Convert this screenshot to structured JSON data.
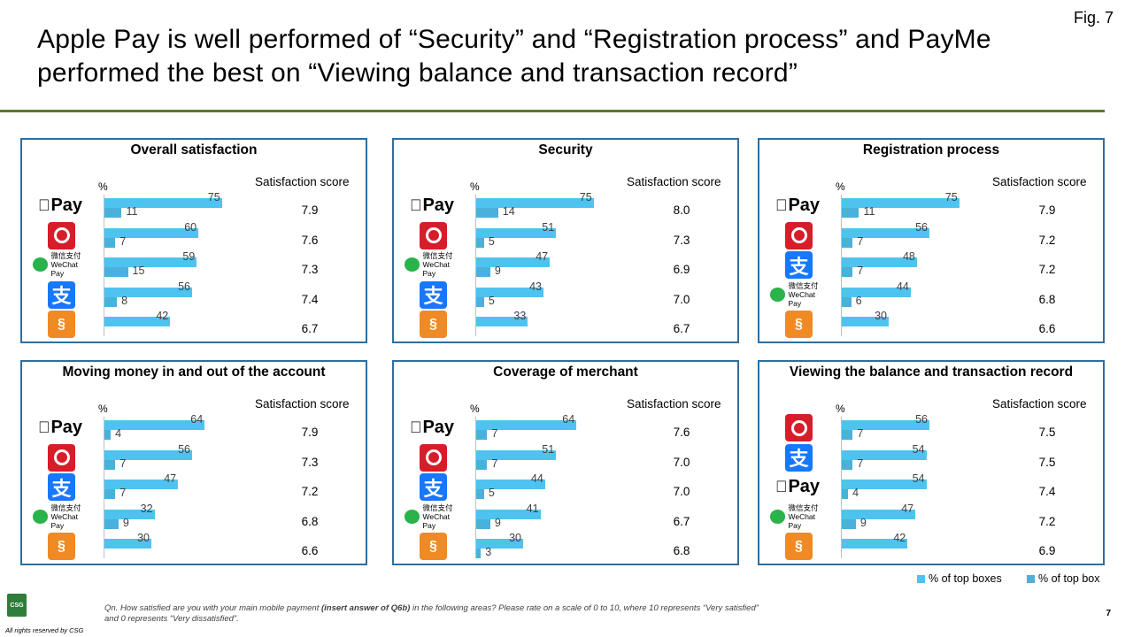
{
  "fig_label": "Fig. 7",
  "title": "Apple Pay is well performed of “Security” and “Registration process” and PayMe performed the best on “Viewing balance and transaction record”",
  "pct_symbol": "%",
  "score_header": "Satisfaction score",
  "colors": {
    "top_boxes": "#4fc3f0",
    "top_box": "#4ab0dc",
    "panel_border": "#2e6e9e",
    "title_rule": "#5b7a2e"
  },
  "brands": {
    "apple": {
      "glyph": "",
      "text": "Pay"
    },
    "payme": {
      "text": "P"
    },
    "wechat": {
      "line1": "微信支付",
      "line2": "WeChat Pay"
    },
    "alipay": {
      "text": "支"
    },
    "octopus": {
      "text": "§"
    }
  },
  "chart_data": [
    {
      "type": "bar",
      "title": "Overall satisfaction",
      "categories": [
        "apple",
        "payme",
        "wechat",
        "alipay",
        "octopus"
      ],
      "series": [
        {
          "name": "% of top boxes",
          "values": [
            75,
            60,
            59,
            56,
            42
          ]
        },
        {
          "name": "% of top box",
          "values": [
            11,
            7,
            15,
            8,
            null
          ]
        }
      ],
      "scores": [
        "7.9",
        "7.6",
        "7.3",
        "7.4",
        "6.7"
      ]
    },
    {
      "type": "bar",
      "title": "Security",
      "categories": [
        "apple",
        "payme",
        "wechat",
        "alipay",
        "octopus"
      ],
      "series": [
        {
          "name": "% of top boxes",
          "values": [
            75,
            51,
            47,
            43,
            33
          ]
        },
        {
          "name": "% of top box",
          "values": [
            14,
            5,
            9,
            5,
            null
          ]
        }
      ],
      "scores": [
        "8.0",
        "7.3",
        "6.9",
        "7.0",
        "6.7"
      ]
    },
    {
      "type": "bar",
      "title": "Registration process",
      "categories": [
        "apple",
        "payme",
        "alipay",
        "wechat",
        "octopus"
      ],
      "series": [
        {
          "name": "% of top boxes",
          "values": [
            75,
            56,
            48,
            44,
            30
          ]
        },
        {
          "name": "% of top box",
          "values": [
            11,
            7,
            7,
            6,
            null
          ]
        }
      ],
      "scores": [
        "7.9",
        "7.2",
        "7.2",
        "6.8",
        "6.6"
      ]
    },
    {
      "type": "bar",
      "title": "Moving money in and out of the account",
      "categories": [
        "apple",
        "payme",
        "alipay",
        "wechat",
        "octopus"
      ],
      "series": [
        {
          "name": "% of top boxes",
          "values": [
            64,
            56,
            47,
            32,
            30
          ]
        },
        {
          "name": "% of top box",
          "values": [
            4,
            7,
            7,
            9,
            null
          ]
        }
      ],
      "scores": [
        "7.9",
        "7.3",
        "7.2",
        "6.8",
        "6.6"
      ]
    },
    {
      "type": "bar",
      "title": "Coverage of merchant",
      "categories": [
        "apple",
        "payme",
        "alipay",
        "wechat",
        "octopus"
      ],
      "series": [
        {
          "name": "% of top boxes",
          "values": [
            64,
            51,
            44,
            41,
            30
          ]
        },
        {
          "name": "% of top box",
          "values": [
            7,
            7,
            5,
            9,
            3
          ]
        }
      ],
      "scores": [
        "7.6",
        "7.0",
        "7.0",
        "6.7",
        "6.8"
      ]
    },
    {
      "type": "bar",
      "title": "Viewing the balance and transaction record",
      "categories": [
        "payme",
        "alipay",
        "apple",
        "wechat",
        "octopus"
      ],
      "series": [
        {
          "name": "% of top boxes",
          "values": [
            56,
            54,
            54,
            47,
            42
          ]
        },
        {
          "name": "% of top box",
          "values": [
            7,
            7,
            4,
            9,
            null
          ]
        }
      ],
      "scores": [
        "7.5",
        "7.5",
        "7.4",
        "7.2",
        "6.9"
      ]
    }
  ],
  "legend": {
    "top_boxes": "% of top boxes",
    "top_box": "% of top box"
  },
  "footnote_pre": "Qn. How satisfied are you with your main mobile payment ",
  "footnote_bold": "(insert answer of Q6b)",
  "footnote_post": " in the following areas? Please rate on a scale of 0 to 10, where 10 represents “Very satisfied” and 0 represents “Very dissatisfied”.",
  "page_number": "7",
  "rights": "All rights reserved by CSG",
  "csg_logo": "CSG"
}
